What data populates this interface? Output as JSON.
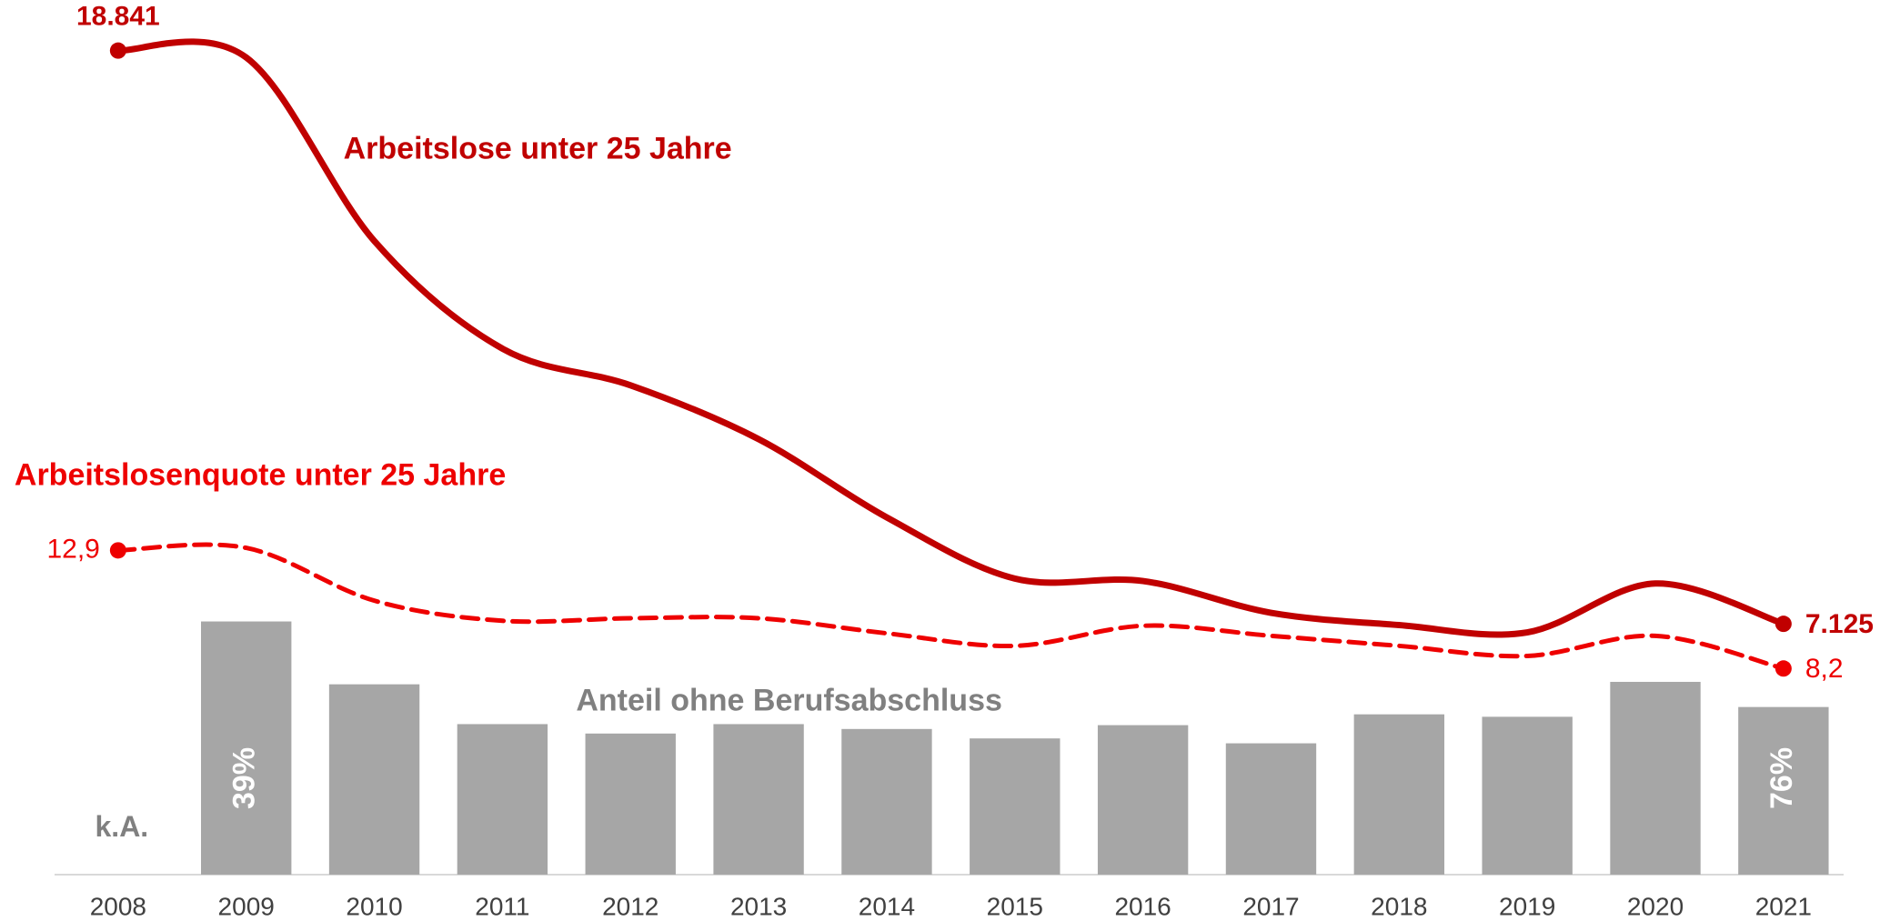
{
  "chart_data": {
    "type": "bar-line",
    "categories": [
      "2008",
      "2009",
      "2010",
      "2011",
      "2012",
      "2013",
      "2014",
      "2015",
      "2016",
      "2017",
      "2018",
      "2019",
      "2020",
      "2021"
    ],
    "series": [
      {
        "name": "Anteil ohne Berufsabschluss",
        "type": "bar",
        "color": "#a6a6a6",
        "label_color": "#808080",
        "ylim": [
          0,
          25050
        ],
        "values": [
          null,
          7250,
          5450,
          4310,
          4040,
          4310,
          4170,
          3900,
          4280,
          3760,
          4590,
          4520,
          5520,
          4800
        ]
      },
      {
        "name": "Arbeitslose unter 25 Jahre",
        "type": "line",
        "color": "#c00000",
        "dashed": false,
        "ylim": [
          2000,
          19875
        ],
        "values": [
          18841,
          18700,
          14950,
          12750,
          12000,
          10900,
          9300,
          8050,
          8000,
          7350,
          7100,
          6950,
          7950,
          7125
        ],
        "value_labels": [
          "18.841",
          null,
          null,
          null,
          null,
          null,
          null,
          null,
          null,
          null,
          null,
          null,
          null,
          "7.125"
        ]
      },
      {
        "name": "Arbeitslosenquote unter 25 Jahre",
        "type": "line",
        "color": "#ee0000",
        "dashed": true,
        "ylim": [
          0,
          34.8
        ],
        "values": [
          12.9,
          13.0,
          10.9,
          10.1,
          10.2,
          10.2,
          9.6,
          9.1,
          9.9,
          9.5,
          9.1,
          8.7,
          9.5,
          8.2
        ],
        "value_labels": [
          "12,9",
          null,
          null,
          null,
          null,
          null,
          null,
          null,
          null,
          null,
          null,
          null,
          null,
          "8,2"
        ]
      }
    ],
    "bar_labels": [
      {
        "category": "2008",
        "label": "k.A."
      },
      {
        "category": "2009",
        "label": "39%"
      },
      {
        "category": "2021",
        "label": "76%"
      }
    ]
  }
}
